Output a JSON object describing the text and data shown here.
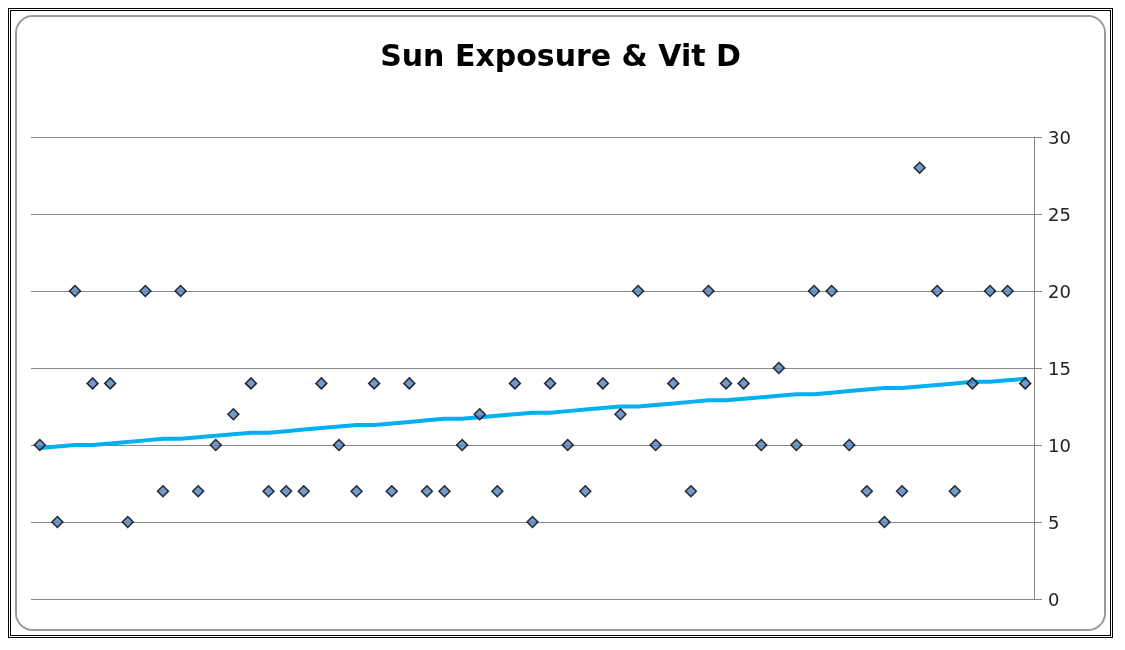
{
  "chart_data": {
    "type": "scatter",
    "title": "Sun Exposure & Vit D",
    "categories": [
      null,
      null,
      null,
      null,
      null,
      null,
      null,
      null,
      null,
      null,
      null,
      null,
      null,
      null,
      null,
      null,
      null,
      null,
      null,
      null,
      null,
      null,
      null,
      null,
      null,
      null,
      null,
      null,
      null,
      null,
      null,
      null,
      null,
      null,
      null,
      null,
      null,
      null,
      null,
      null,
      null,
      null,
      null,
      null,
      null,
      null,
      null,
      null,
      null,
      null,
      null,
      null,
      null,
      null,
      null,
      null,
      null
    ],
    "series": [
      {
        "color": "#4f81bd",
        "marker": "diamond",
        "values": [
          10,
          5,
          20,
          14,
          14,
          5,
          20,
          7,
          20,
          7,
          10,
          12,
          14,
          7,
          7,
          7,
          14,
          10,
          7,
          14,
          7,
          14,
          7,
          7,
          10,
          12,
          7,
          14,
          5,
          14,
          10,
          7,
          14,
          12,
          20,
          10,
          14,
          7,
          20,
          14,
          14,
          10,
          15,
          10,
          20,
          20,
          10,
          7,
          5,
          7,
          28,
          20,
          7,
          14,
          20,
          20,
          14
        ]
      },
      {
        "type": "line",
        "color": "#00b0f0",
        "marker": "none",
        "line_style": "solid",
        "values": [
          9.8,
          9.9,
          10.0,
          10.0,
          10.1,
          10.2,
          10.3,
          10.4,
          10.4,
          10.5,
          10.6,
          10.7,
          10.8,
          10.8,
          10.9,
          11.0,
          11.1,
          11.2,
          11.3,
          11.3,
          11.4,
          11.5,
          11.6,
          11.7,
          11.7,
          11.8,
          11.9,
          12.0,
          12.1,
          12.1,
          12.2,
          12.3,
          12.4,
          12.5,
          12.5,
          12.6,
          12.7,
          12.8,
          12.9,
          12.9,
          13.0,
          13.1,
          13.2,
          13.3,
          13.3,
          13.4,
          13.5,
          13.6,
          13.7,
          13.7,
          13.8,
          13.9,
          14.0,
          14.1,
          14.1,
          14.2,
          14.3
        ]
      }
    ],
    "ylim": [
      0,
      30
    ],
    "yticks": [
      0,
      5,
      10,
      15,
      20,
      25,
      30
    ],
    "grid": "y",
    "tick_labels": "y"
  }
}
